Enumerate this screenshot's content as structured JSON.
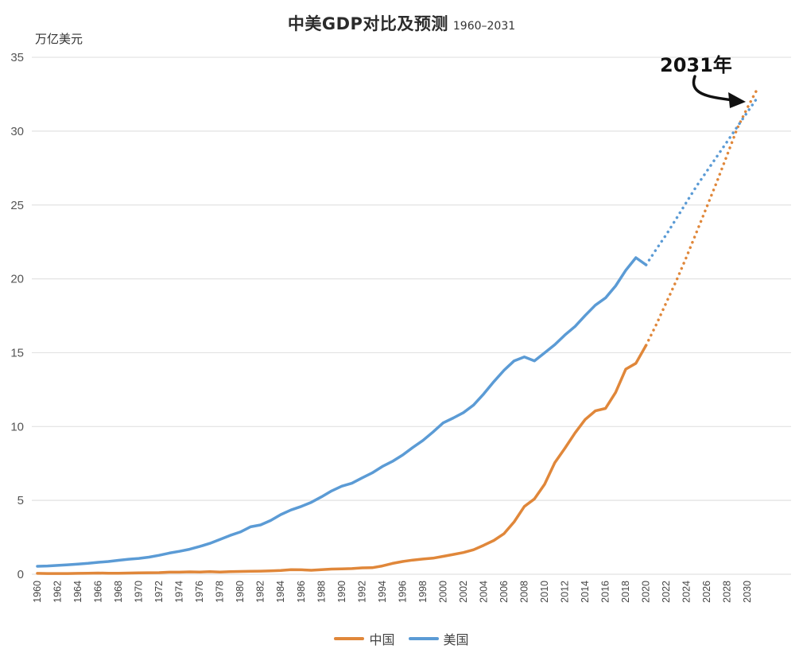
{
  "chart_data": {
    "type": "line",
    "title": "中美GDP对比及预测",
    "subtitle": "1960–2031",
    "ylabel": "万亿美元",
    "xlabel": "",
    "ylim": [
      0,
      35
    ],
    "yticks": [
      0,
      5,
      10,
      15,
      20,
      25,
      30,
      35
    ],
    "xlim": [
      1960,
      2031
    ],
    "xticks": [
      1960,
      1962,
      1964,
      1966,
      1968,
      1970,
      1972,
      1974,
      1976,
      1978,
      1980,
      1982,
      1984,
      1986,
      1988,
      1990,
      1992,
      1994,
      1996,
      1998,
      2000,
      2002,
      2004,
      2006,
      2008,
      2010,
      2012,
      2014,
      2016,
      2018,
      2020,
      2022,
      2024,
      2026,
      2028,
      2030
    ],
    "grid": true,
    "legend_position": "bottom-center",
    "annotation": {
      "text": "2031年",
      "points_to": {
        "x": 2031,
        "y": 32.3
      }
    },
    "series": [
      {
        "name": "中国",
        "color": "#E0873A",
        "actual": {
          "x": [
            1960,
            1961,
            1962,
            1963,
            1964,
            1965,
            1966,
            1967,
            1968,
            1969,
            1970,
            1971,
            1972,
            1973,
            1974,
            1975,
            1976,
            1977,
            1978,
            1979,
            1980,
            1981,
            1982,
            1983,
            1984,
            1985,
            1986,
            1987,
            1988,
            1989,
            1990,
            1991,
            1992,
            1993,
            1994,
            1995,
            1996,
            1997,
            1998,
            1999,
            2000,
            2001,
            2002,
            2003,
            2004,
            2005,
            2006,
            2007,
            2008,
            2009,
            2010,
            2011,
            2012,
            2013,
            2014,
            2015,
            2016,
            2017,
            2018,
            2019,
            2020
          ],
          "y": [
            0.06,
            0.05,
            0.05,
            0.05,
            0.06,
            0.07,
            0.08,
            0.07,
            0.07,
            0.08,
            0.09,
            0.1,
            0.11,
            0.14,
            0.14,
            0.16,
            0.15,
            0.17,
            0.15,
            0.18,
            0.19,
            0.2,
            0.21,
            0.23,
            0.26,
            0.31,
            0.3,
            0.27,
            0.31,
            0.35,
            0.36,
            0.38,
            0.43,
            0.44,
            0.56,
            0.73,
            0.86,
            0.96,
            1.03,
            1.09,
            1.21,
            1.34,
            1.47,
            1.66,
            1.96,
            2.29,
            2.75,
            3.55,
            4.59,
            5.1,
            6.09,
            7.55,
            8.53,
            9.57,
            10.48,
            11.06,
            11.23,
            12.31,
            13.89,
            14.28,
            15.5
          ]
        },
        "projection": {
          "x": [
            2020,
            2021,
            2022,
            2023,
            2024,
            2025,
            2026,
            2027,
            2028,
            2029,
            2030,
            2031
          ],
          "y": [
            15.5,
            16.9,
            18.4,
            19.9,
            21.5,
            23.2,
            24.9,
            26.6,
            28.4,
            30.2,
            31.6,
            32.9
          ]
        }
      },
      {
        "name": "美国",
        "color": "#5B9BD5",
        "actual": {
          "x": [
            1960,
            1961,
            1962,
            1963,
            1964,
            1965,
            1966,
            1967,
            1968,
            1969,
            1970,
            1971,
            1972,
            1973,
            1974,
            1975,
            1976,
            1977,
            1978,
            1979,
            1980,
            1981,
            1982,
            1983,
            1984,
            1985,
            1986,
            1987,
            1988,
            1989,
            1990,
            1991,
            1992,
            1993,
            1994,
            1995,
            1996,
            1997,
            1998,
            1999,
            2000,
            2001,
            2002,
            2003,
            2004,
            2005,
            2006,
            2007,
            2008,
            2009,
            2010,
            2011,
            2012,
            2013,
            2014,
            2015,
            2016,
            2017,
            2018,
            2019,
            2020
          ],
          "y": [
            0.54,
            0.56,
            0.6,
            0.64,
            0.69,
            0.74,
            0.81,
            0.86,
            0.94,
            1.02,
            1.07,
            1.16,
            1.28,
            1.43,
            1.55,
            1.69,
            1.88,
            2.09,
            2.36,
            2.63,
            2.86,
            3.21,
            3.34,
            3.64,
            4.04,
            4.35,
            4.59,
            4.87,
            5.24,
            5.64,
            5.96,
            6.16,
            6.52,
            6.86,
            7.29,
            7.64,
            8.07,
            8.58,
            9.06,
            9.63,
            10.25,
            10.58,
            10.94,
            11.46,
            12.21,
            13.04,
            13.81,
            14.45,
            14.71,
            14.45,
            14.99,
            15.54,
            16.2,
            16.78,
            17.52,
            18.22,
            18.71,
            19.52,
            20.58,
            21.43,
            20.95
          ]
        },
        "projection": {
          "x": [
            2020,
            2021,
            2022,
            2023,
            2024,
            2025,
            2026,
            2027,
            2028,
            2029,
            2030,
            2031
          ],
          "y": [
            20.95,
            22.0,
            23.0,
            24.1,
            25.2,
            26.3,
            27.3,
            28.3,
            29.3,
            30.3,
            31.3,
            32.3
          ]
        }
      }
    ]
  }
}
